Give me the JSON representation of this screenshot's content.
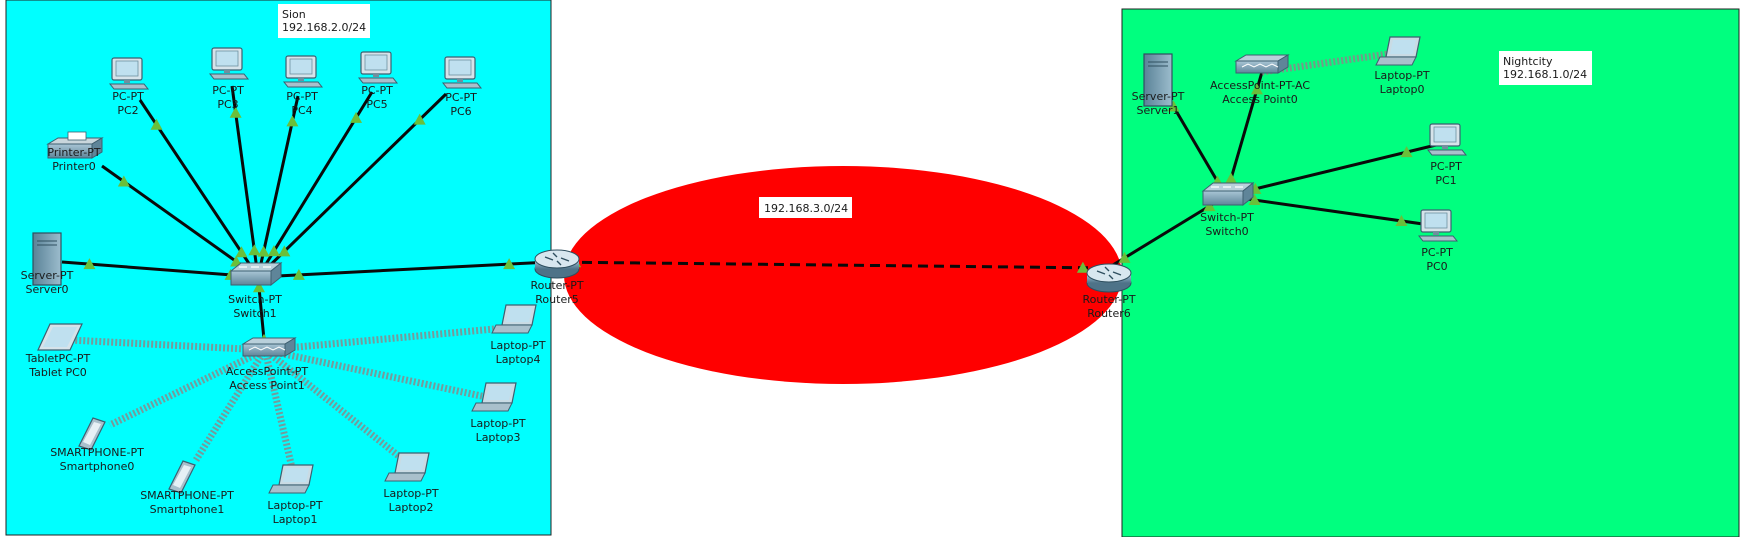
{
  "colors": {
    "sion_zone": "#00ffff",
    "nightcity_zone": "#00ff7f",
    "wan_zone": "#ff0000",
    "link_light": "#6abf3a"
  },
  "zones": {
    "sion": {
      "name": "Sion",
      "subnet": "192.168.2.0/24"
    },
    "nightcity": {
      "name": "Nightcity",
      "subnet": "192.168.1.0/24"
    },
    "wan": {
      "subnet": "192.168.3.0/24"
    }
  },
  "devices": [
    {
      "id": "pc2",
      "kind": "pc",
      "model": "PC-PT",
      "name": "PC2"
    },
    {
      "id": "pc3",
      "kind": "pc",
      "model": "PC-PT",
      "name": "PC3"
    },
    {
      "id": "pc4",
      "kind": "pc",
      "model": "PC-PT",
      "name": "PC4"
    },
    {
      "id": "pc5",
      "kind": "pc",
      "model": "PC-PT",
      "name": "PC5"
    },
    {
      "id": "pc6",
      "kind": "pc",
      "model": "PC-PT",
      "name": "PC6"
    },
    {
      "id": "printer0",
      "kind": "printer",
      "model": "Printer-PT",
      "name": "Printer0"
    },
    {
      "id": "server0",
      "kind": "server",
      "model": "Server-PT",
      "name": "Server0"
    },
    {
      "id": "switch1",
      "kind": "switch",
      "model": "Switch-PT",
      "name": "Switch1"
    },
    {
      "id": "router5",
      "kind": "router",
      "model": "Router-PT",
      "name": "Router5"
    },
    {
      "id": "ap1",
      "kind": "ap",
      "model": "AccessPoint-PT",
      "name": "Access Point1"
    },
    {
      "id": "tablet0",
      "kind": "tablet",
      "model": "TabletPC-PT",
      "name": "Tablet PC0"
    },
    {
      "id": "laptop4",
      "kind": "laptop",
      "model": "Laptop-PT",
      "name": "Laptop4"
    },
    {
      "id": "laptop3",
      "kind": "laptop",
      "model": "Laptop-PT",
      "name": "Laptop3"
    },
    {
      "id": "smart0",
      "kind": "phone",
      "model": "SMARTPHONE-PT",
      "name": "Smartphone0"
    },
    {
      "id": "smart1",
      "kind": "phone",
      "model": "SMARTPHONE-PT",
      "name": "Smartphone1"
    },
    {
      "id": "laptop1",
      "kind": "laptop",
      "model": "Laptop-PT",
      "name": "Laptop1"
    },
    {
      "id": "laptop2",
      "kind": "laptop",
      "model": "Laptop-PT",
      "name": "Laptop2"
    },
    {
      "id": "router6",
      "kind": "router",
      "model": "Router-PT",
      "name": "Router6"
    },
    {
      "id": "server1",
      "kind": "server",
      "model": "Server-PT",
      "name": "Server1"
    },
    {
      "id": "ap0",
      "kind": "ap",
      "model": "AccessPoint-PT-AC",
      "name": "Access Point0"
    },
    {
      "id": "laptop0",
      "kind": "laptop",
      "model": "Laptop-PT",
      "name": "Laptop0"
    },
    {
      "id": "switch0",
      "kind": "switch",
      "model": "Switch-PT",
      "name": "Switch0"
    },
    {
      "id": "pc1",
      "kind": "pc",
      "model": "PC-PT",
      "name": "PC1"
    },
    {
      "id": "pc0",
      "kind": "pc",
      "model": "PC-PT",
      "name": "PC0"
    }
  ],
  "links": [
    {
      "from": "switch1",
      "to": "pc2",
      "type": "ethernet"
    },
    {
      "from": "switch1",
      "to": "pc3",
      "type": "ethernet"
    },
    {
      "from": "switch1",
      "to": "pc4",
      "type": "ethernet"
    },
    {
      "from": "switch1",
      "to": "pc5",
      "type": "ethernet"
    },
    {
      "from": "switch1",
      "to": "pc6",
      "type": "ethernet"
    },
    {
      "from": "switch1",
      "to": "printer0",
      "type": "ethernet"
    },
    {
      "from": "switch1",
      "to": "server0",
      "type": "ethernet"
    },
    {
      "from": "switch1",
      "to": "router5",
      "type": "ethernet"
    },
    {
      "from": "switch1",
      "to": "ap1",
      "type": "ethernet"
    },
    {
      "from": "ap1",
      "to": "tablet0",
      "type": "wireless"
    },
    {
      "from": "ap1",
      "to": "laptop4",
      "type": "wireless"
    },
    {
      "from": "ap1",
      "to": "laptop3",
      "type": "wireless"
    },
    {
      "from": "ap1",
      "to": "laptop2",
      "type": "wireless"
    },
    {
      "from": "ap1",
      "to": "laptop1",
      "type": "wireless"
    },
    {
      "from": "ap1",
      "to": "smart1",
      "type": "wireless"
    },
    {
      "from": "ap1",
      "to": "smart0",
      "type": "wireless"
    },
    {
      "from": "router5",
      "to": "router6",
      "type": "serial"
    },
    {
      "from": "router6",
      "to": "switch0",
      "type": "ethernet"
    },
    {
      "from": "switch0",
      "to": "server1",
      "type": "ethernet"
    },
    {
      "from": "switch0",
      "to": "ap0",
      "type": "ethernet"
    },
    {
      "from": "switch0",
      "to": "pc1",
      "type": "ethernet"
    },
    {
      "from": "switch0",
      "to": "pc0",
      "type": "ethernet"
    },
    {
      "from": "ap0",
      "to": "laptop0",
      "type": "wireless"
    }
  ]
}
